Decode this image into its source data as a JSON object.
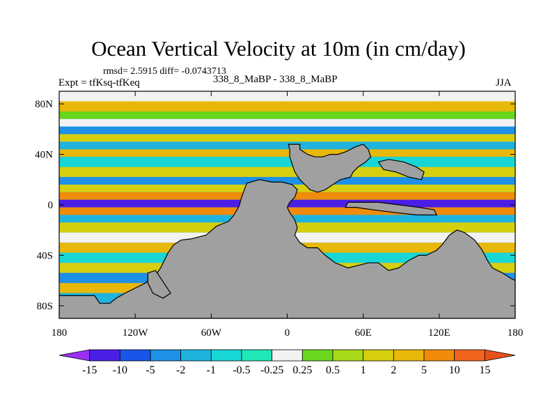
{
  "title": "Ocean Vertical Velocity at 10m (in cm/day)",
  "stats": {
    "rmsd_label": "rmsd=",
    "rmsd_value": "2.5915",
    "diff_label": "diff=",
    "diff_value": "-0.0743713"
  },
  "subtitle_left": "Expt = tfKsq-tfKeq",
  "subtitle_center": "338_8_MaBP - 338_8_MaBP",
  "subtitle_right": "JJA",
  "colors": {
    "land": "#a0a0a0",
    "background_field": "#1e90ff"
  },
  "chart_data": {
    "type": "heatmap",
    "title": "Ocean Vertical Velocity at 10m (in cm/day)",
    "variable": "Ocean Vertical Velocity at 10m",
    "units": "cm/day",
    "x_range": [
      -180,
      180
    ],
    "y_range": [
      -90,
      90
    ],
    "x_ticks": [
      {
        "value": -180,
        "label": "180"
      },
      {
        "value": -120,
        "label": "120W"
      },
      {
        "value": -60,
        "label": "60W"
      },
      {
        "value": 0,
        "label": "0"
      },
      {
        "value": 60,
        "label": "60E"
      },
      {
        "value": 120,
        "label": "120E"
      },
      {
        "value": 180,
        "label": "180"
      }
    ],
    "y_ticks": [
      {
        "value": 80,
        "label": "80N"
      },
      {
        "value": 40,
        "label": "40N"
      },
      {
        "value": 0,
        "label": "0"
      },
      {
        "value": -40,
        "label": "40S"
      },
      {
        "value": -80,
        "label": "80S"
      }
    ],
    "colorbar": {
      "colors": [
        "#9b2ff2",
        "#4b1ee6",
        "#1a55e8",
        "#1e90e6",
        "#1fb3de",
        "#19d6d6",
        "#20e8b8",
        "#f2f2f2",
        "#6ad61e",
        "#a8d81a",
        "#d6cf10",
        "#e8b80a",
        "#f08c0a",
        "#f0641e",
        "#e8501a"
      ],
      "labels": [
        "-15",
        "-10",
        "-5",
        "-2",
        "-1",
        "-0.5",
        "-0.25",
        "0.25",
        "0.5",
        "1",
        "2",
        "5",
        "10",
        "15"
      ],
      "min_extend": true,
      "max_extend": true
    },
    "zonal_bands": [
      {
        "lat_from": 90,
        "lat_to": 82,
        "level": 7
      },
      {
        "lat_from": 82,
        "lat_to": 74,
        "level": 11
      },
      {
        "lat_from": 74,
        "lat_to": 68,
        "level": 8
      },
      {
        "lat_from": 68,
        "lat_to": 62,
        "level": 7
      },
      {
        "lat_from": 62,
        "lat_to": 56,
        "level": 3
      },
      {
        "lat_from": 56,
        "lat_to": 50,
        "level": 10
      },
      {
        "lat_from": 50,
        "lat_to": 44,
        "level": 4
      },
      {
        "lat_from": 44,
        "lat_to": 38,
        "level": 11
      },
      {
        "lat_from": 38,
        "lat_to": 30,
        "level": 5
      },
      {
        "lat_from": 30,
        "lat_to": 22,
        "level": 10
      },
      {
        "lat_from": 22,
        "lat_to": 16,
        "level": 3
      },
      {
        "lat_from": 16,
        "lat_to": 10,
        "level": 10
      },
      {
        "lat_from": 10,
        "lat_to": 4,
        "level": 12
      },
      {
        "lat_from": 4,
        "lat_to": -2,
        "level": 1
      },
      {
        "lat_from": -2,
        "lat_to": -8,
        "level": 12
      },
      {
        "lat_from": -8,
        "lat_to": -14,
        "level": 4
      },
      {
        "lat_from": -14,
        "lat_to": -22,
        "level": 10
      },
      {
        "lat_from": -22,
        "lat_to": -30,
        "level": 7
      },
      {
        "lat_from": -30,
        "lat_to": -38,
        "level": 11
      },
      {
        "lat_from": -38,
        "lat_to": -46,
        "level": 5
      },
      {
        "lat_from": -46,
        "lat_to": -54,
        "level": 10
      },
      {
        "lat_from": -54,
        "lat_to": -62,
        "level": 3
      },
      {
        "lat_from": -62,
        "lat_to": -70,
        "level": 11
      },
      {
        "lat_from": -70,
        "lat_to": -78,
        "level": 4
      },
      {
        "lat_from": -78,
        "lat_to": -90,
        "level": 10
      }
    ],
    "land_masses": [
      {
        "name": "southern-continent",
        "points": [
          [
            -180,
            -72
          ],
          [
            -152,
            -72
          ],
          [
            -148,
            -78
          ],
          [
            -140,
            -78
          ],
          [
            -135,
            -74
          ],
          [
            -128,
            -70
          ],
          [
            -120,
            -66
          ],
          [
            -112,
            -62
          ],
          [
            -104,
            -56
          ],
          [
            -100,
            -50
          ],
          [
            -97,
            -44
          ],
          [
            -94,
            -38
          ],
          [
            -90,
            -32
          ],
          [
            -84,
            -28
          ],
          [
            -76,
            -27
          ],
          [
            -64,
            -24
          ],
          [
            -56,
            -17
          ],
          [
            -46,
            -13
          ],
          [
            -42,
            -8
          ],
          [
            -38,
            -1
          ],
          [
            -36,
            6
          ],
          [
            -32,
            17
          ],
          [
            -22,
            20
          ],
          [
            -12,
            18
          ],
          [
            -4,
            18
          ],
          [
            4,
            16
          ],
          [
            8,
            12
          ],
          [
            6,
            6
          ],
          [
            2,
            2
          ],
          [
            0,
            -2
          ],
          [
            2,
            -6
          ],
          [
            6,
            -12
          ],
          [
            8,
            -18
          ],
          [
            6,
            -24
          ],
          [
            10,
            -30
          ],
          [
            16,
            -34
          ],
          [
            24,
            -34
          ],
          [
            30,
            -40
          ],
          [
            38,
            -46
          ],
          [
            48,
            -50
          ],
          [
            56,
            -48
          ],
          [
            64,
            -46
          ],
          [
            72,
            -46
          ],
          [
            80,
            -52
          ],
          [
            88,
            -50
          ],
          [
            96,
            -44
          ],
          [
            104,
            -40
          ],
          [
            110,
            -40
          ],
          [
            118,
            -36
          ],
          [
            122,
            -32
          ],
          [
            128,
            -24
          ],
          [
            134,
            -20
          ],
          [
            140,
            -22
          ],
          [
            148,
            -28
          ],
          [
            154,
            -36
          ],
          [
            158,
            -44
          ],
          [
            162,
            -50
          ],
          [
            170,
            -54
          ],
          [
            176,
            -58
          ],
          [
            180,
            -60
          ],
          [
            180,
            -90
          ],
          [
            -180,
            -90
          ]
        ]
      },
      {
        "name": "northern-continent",
        "points": [
          [
            1,
            48
          ],
          [
            10,
            48
          ],
          [
            10,
            44
          ],
          [
            16,
            40
          ],
          [
            22,
            38
          ],
          [
            28,
            38
          ],
          [
            34,
            40
          ],
          [
            40,
            40
          ],
          [
            46,
            42
          ],
          [
            54,
            46
          ],
          [
            60,
            48
          ],
          [
            64,
            44
          ],
          [
            66,
            38
          ],
          [
            62,
            34
          ],
          [
            56,
            30
          ],
          [
            52,
            26
          ],
          [
            50,
            22
          ],
          [
            42,
            20
          ],
          [
            36,
            16
          ],
          [
            30,
            12
          ],
          [
            24,
            10
          ],
          [
            18,
            12
          ],
          [
            14,
            16
          ],
          [
            10,
            20
          ],
          [
            6,
            26
          ],
          [
            4,
            32
          ],
          [
            2,
            38
          ],
          [
            2,
            44
          ]
        ]
      },
      {
        "name": "equatorial-island",
        "points": [
          [
            48,
            2
          ],
          [
            60,
            2
          ],
          [
            72,
            2
          ],
          [
            88,
            0
          ],
          [
            104,
            -2
          ],
          [
            116,
            -4
          ],
          [
            118,
            -8
          ],
          [
            102,
            -8
          ],
          [
            84,
            -6
          ],
          [
            68,
            -4
          ],
          [
            54,
            -2
          ],
          [
            46,
            -2
          ]
        ]
      },
      {
        "name": "eastern-shelf",
        "points": [
          [
            72,
            34
          ],
          [
            80,
            36
          ],
          [
            92,
            34
          ],
          [
            102,
            30
          ],
          [
            108,
            26
          ],
          [
            106,
            20
          ],
          [
            96,
            22
          ],
          [
            86,
            26
          ],
          [
            76,
            28
          ]
        ]
      },
      {
        "name": "arm-island",
        "points": [
          [
            -110,
            -54
          ],
          [
            -104,
            -52
          ],
          [
            -100,
            -58
          ],
          [
            -96,
            -64
          ],
          [
            -92,
            -70
          ],
          [
            -98,
            -74
          ],
          [
            -106,
            -70
          ],
          [
            -110,
            -62
          ]
        ]
      }
    ]
  }
}
